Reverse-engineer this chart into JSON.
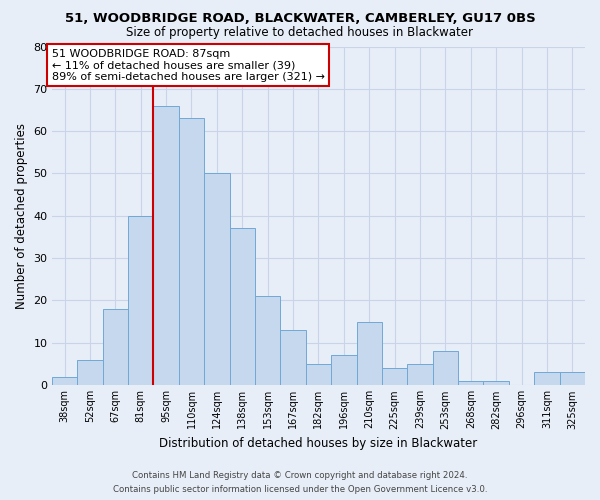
{
  "title": "51, WOODBRIDGE ROAD, BLACKWATER, CAMBERLEY, GU17 0BS",
  "subtitle": "Size of property relative to detached houses in Blackwater",
  "xlabel": "Distribution of detached houses by size in Blackwater",
  "ylabel": "Number of detached properties",
  "categories": [
    "38sqm",
    "52sqm",
    "67sqm",
    "81sqm",
    "95sqm",
    "110sqm",
    "124sqm",
    "138sqm",
    "153sqm",
    "167sqm",
    "182sqm",
    "196sqm",
    "210sqm",
    "225sqm",
    "239sqm",
    "253sqm",
    "268sqm",
    "282sqm",
    "296sqm",
    "311sqm",
    "325sqm"
  ],
  "values": [
    2,
    6,
    18,
    40,
    66,
    63,
    50,
    37,
    21,
    13,
    5,
    7,
    15,
    4,
    5,
    8,
    1,
    1,
    0,
    3,
    3
  ],
  "bar_color": "#c5d8ed",
  "bar_edge_color": "#6fa8d6",
  "annotation_text": "51 WOODBRIDGE ROAD: 87sqm\n← 11% of detached houses are smaller (39)\n89% of semi-detached houses are larger (321) →",
  "annotation_box_color": "#ffffff",
  "annotation_box_edge_color": "#cc0000",
  "ylim": [
    0,
    80
  ],
  "yticks": [
    0,
    10,
    20,
    30,
    40,
    50,
    60,
    70,
    80
  ],
  "grid_color": "#c8d4e8",
  "bg_color": "#e8eef8",
  "footnote1": "Contains HM Land Registry data © Crown copyright and database right 2024.",
  "footnote2": "Contains public sector information licensed under the Open Government Licence v3.0."
}
